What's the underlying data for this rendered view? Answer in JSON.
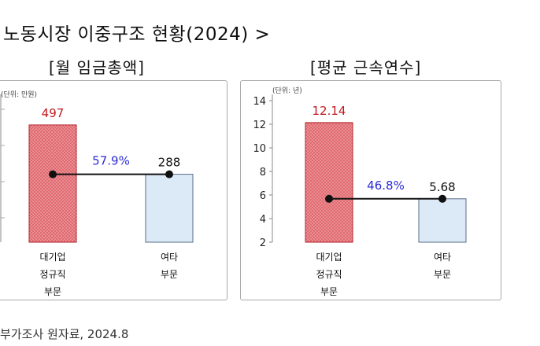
{
  "header": {
    "title": "노동시장 이중구조 현황(2024) >",
    "footer": "부가조사 원자료, 2024.8"
  },
  "colors": {
    "large_bar": "#e06a70",
    "large_bar_edge": "#b22027",
    "other_bar": "#dce9f7",
    "other_bar_edge": "#5a6c85",
    "line": "#111111",
    "ratio_text": "#2b2bd6",
    "large_value_text": "#c0191f"
  },
  "chart_data": [
    {
      "type": "bar",
      "title": "[월 임금총액]",
      "unit_note": "(단위: 만원)",
      "categories": [
        [
          "대기업",
          "정규직",
          "부문"
        ],
        [
          "여타",
          "부문"
        ]
      ],
      "values": [
        497,
        288
      ],
      "value_labels": [
        "497",
        "288"
      ],
      "ratio_label": "57.9%",
      "ylim": [
        0,
        600
      ],
      "yticks": []
    },
    {
      "type": "bar",
      "title": "[평균 근속연수]",
      "unit_note": "(단위: 년)",
      "categories": [
        [
          "대기업",
          "정규직",
          "부문"
        ],
        [
          "여타",
          "부문"
        ]
      ],
      "values": [
        12.14,
        5.68
      ],
      "value_labels": [
        "12.14",
        "5.68"
      ],
      "ratio_label": "46.8%",
      "ylim": [
        2,
        14
      ],
      "yticks": [
        2,
        4,
        6,
        8,
        10,
        12,
        14
      ]
    }
  ]
}
